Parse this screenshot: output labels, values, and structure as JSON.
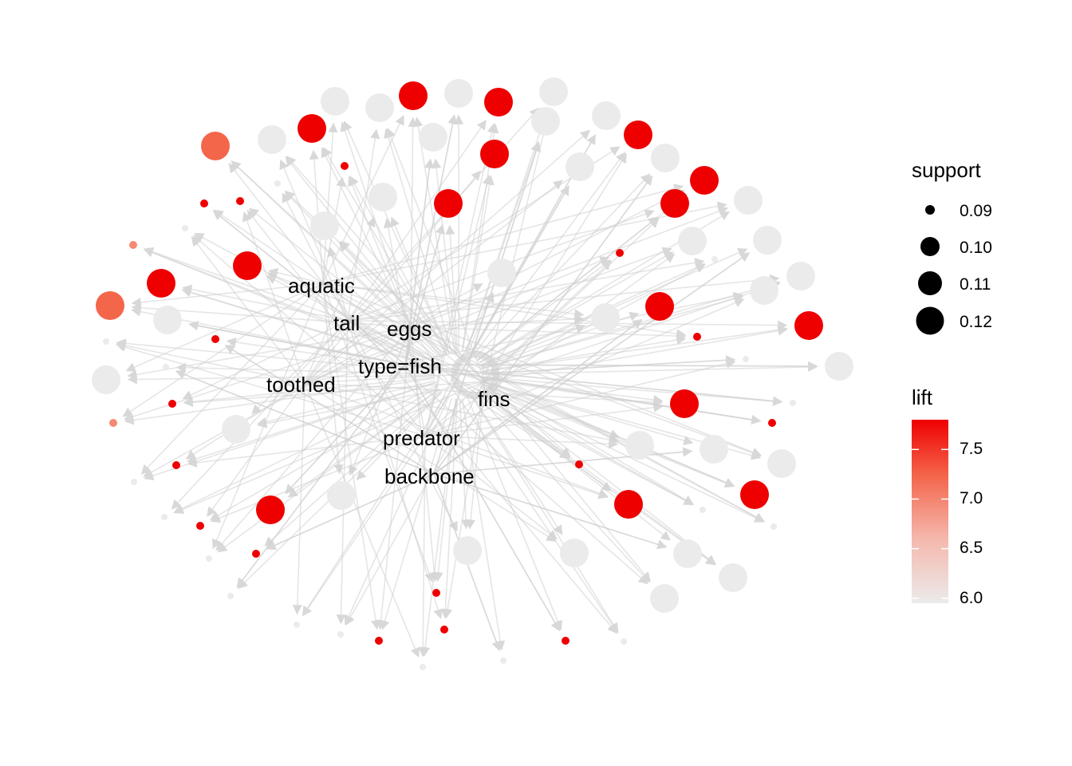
{
  "graph": {
    "item_labels": [
      "aquatic",
      "tail",
      "eggs",
      "type=fish",
      "toothed",
      "fins",
      "predator",
      "backbone"
    ],
    "colors": {
      "low": "#ebebeb",
      "high": "#ee0000",
      "edge": "#cfcfcf",
      "arrow": "#d8d8d8"
    }
  },
  "legend": {
    "support": {
      "title": "support",
      "entries": [
        {
          "label": "0.09",
          "value": 0.09
        },
        {
          "label": "0.10",
          "value": 0.1
        },
        {
          "label": "0.11",
          "value": 0.11
        },
        {
          "label": "0.12",
          "value": 0.12
        }
      ]
    },
    "lift": {
      "title": "lift",
      "min": 5.95,
      "max": 7.8,
      "ticks": [
        {
          "label": "7.5",
          "value": 7.5
        },
        {
          "label": "7.0",
          "value": 7.0
        },
        {
          "label": "6.5",
          "value": 6.5
        },
        {
          "label": "6.0",
          "value": 6.0
        }
      ]
    }
  }
}
